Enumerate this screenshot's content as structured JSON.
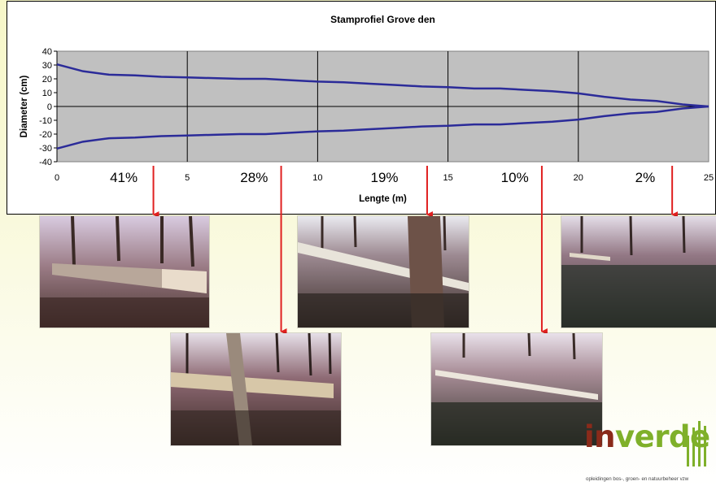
{
  "chart_data": {
    "type": "line",
    "title": "Stamprofiel Grove den",
    "xlabel": "Lengte (m)",
    "ylabel": "Diameter (cm)",
    "xlim": [
      0,
      25
    ],
    "ylim": [
      -40,
      40
    ],
    "x_ticks": [
      "0",
      "5",
      "10",
      "15",
      "20",
      "25"
    ],
    "y_ticks": [
      "40",
      "30",
      "20",
      "10",
      "0",
      "-10",
      "-20",
      "-30",
      "-40"
    ],
    "grid": true,
    "series": [
      {
        "x": [
          0,
          1,
          2,
          3,
          4,
          5,
          6,
          7,
          8,
          9,
          10,
          11,
          12,
          13,
          14,
          15,
          16,
          17,
          18,
          19,
          20,
          21,
          22,
          23,
          24,
          25
        ],
        "values": [
          30.5,
          25.5,
          23,
          22.5,
          21.5,
          21,
          20.5,
          20,
          20,
          19,
          18,
          17.5,
          16.5,
          15.5,
          14.5,
          14,
          13,
          13,
          12,
          11,
          9.5,
          7,
          5,
          4,
          1.5,
          0
        ]
      },
      {
        "x": [
          0,
          1,
          2,
          3,
          4,
          5,
          6,
          7,
          8,
          9,
          10,
          11,
          12,
          13,
          14,
          15,
          16,
          17,
          18,
          19,
          20,
          21,
          22,
          23,
          24,
          25
        ],
        "values": [
          -30.5,
          -25.5,
          -23,
          -22.5,
          -21.5,
          -21,
          -20.5,
          -20,
          -20,
          -19,
          -18,
          -17.5,
          -16.5,
          -15.5,
          -14.5,
          -14,
          -13,
          -13,
          -12,
          -11,
          -9.5,
          -7,
          -5,
          -4,
          -1.5,
          0
        ]
      }
    ],
    "line_color": "#2b2b99",
    "plot_background": "#c0c0c0",
    "annotations": [
      {
        "text": "41%",
        "x": 2.5,
        "arrow_x": 3.7
      },
      {
        "text": "28%",
        "x": 7.5,
        "arrow_x": 8.6
      },
      {
        "text": "19%",
        "x": 12.5,
        "arrow_x": 14.2
      },
      {
        "text": "10%",
        "x": 17.5,
        "arrow_x": 18.6
      },
      {
        "text": "2%",
        "x": 22.5,
        "arrow_x": 23.6
      }
    ],
    "arrow_color": "#e02020"
  },
  "logo": {
    "brand_part1": "in",
    "brand_part2": "verde",
    "tagline": "opleidingen bos-, groen- en natuurbeheer vzw"
  }
}
